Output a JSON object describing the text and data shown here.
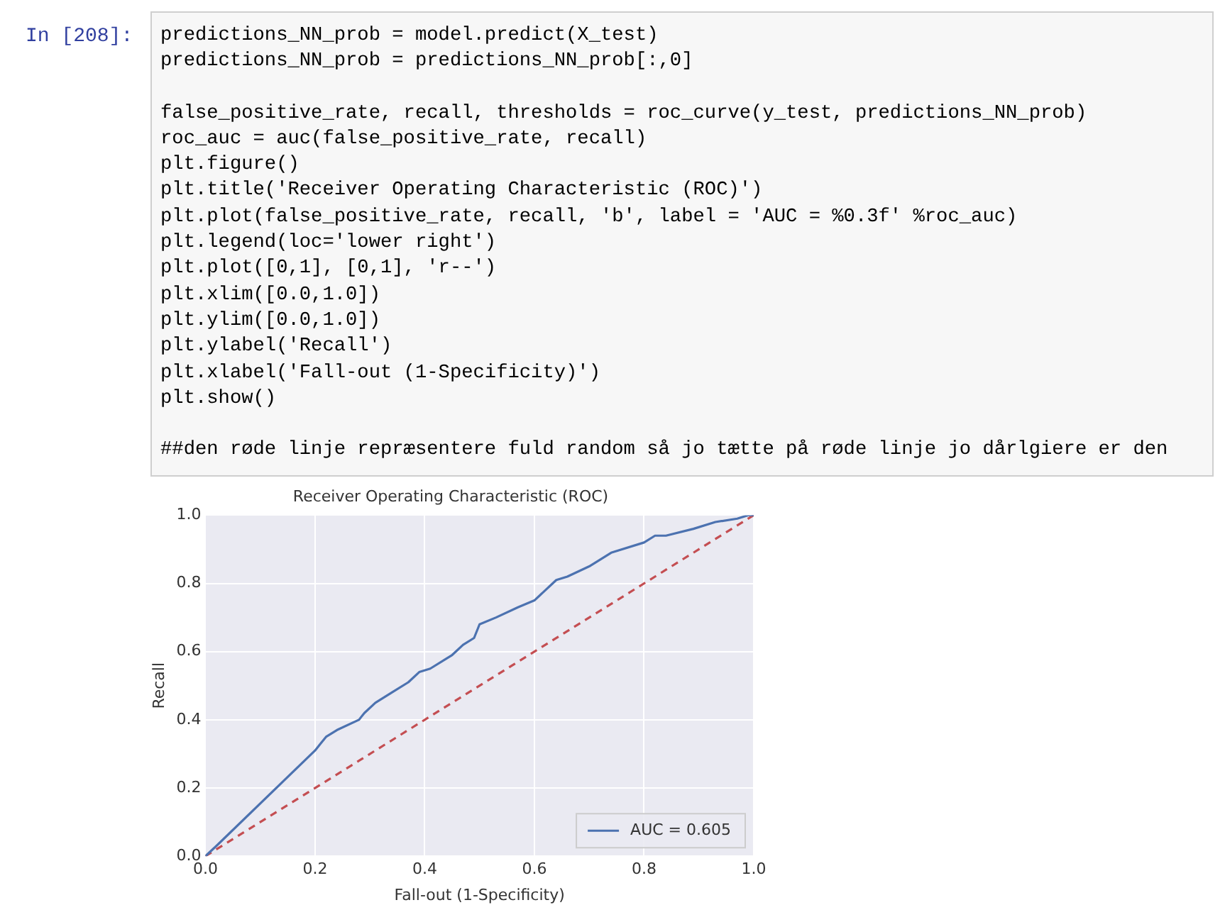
{
  "chart_data": {
    "type": "line",
    "title": "Receiver Operating Characteristic (ROC)",
    "xlabel": "Fall-out (1-Specificity)",
    "ylabel": "Recall",
    "annotations": [
      "In [208]:",
      "predictions_NN_prob = model.predict(X_test)",
      "predictions_NN_prob = predictions_NN_prob[:,0]",
      "false_positive_rate, recall, thresholds = roc_curve(y_test, predictions_NN_prob)",
      "roc_auc = auc(false_positive_rate, recall)",
      "plt.figure()",
      "plt.title('Receiver Operating Characteristic (ROC)')",
      "plt.plot(false_positive_rate, recall, 'b', label = 'AUC = %0.3f' %roc_auc)",
      "plt.legend(loc='lower right')",
      "plt.plot([0,1], [0,1], 'r--')",
      "plt.xlim([0.0,1.0])",
      "plt.ylim([0.0,1.0])",
      "plt.ylabel('Recall')",
      "plt.xlabel('Fall-out (1-Specificity)')",
      "plt.show()",
      "##den røde linje repræsentere fuld random så jo tætte på røde linje jo dårlgiere er den"
    ],
    "series": [
      {
        "name": "AUC = 0.605",
        "color": "#4c72b0",
        "line_style": "solid",
        "x": [
          0,
          0.02,
          0.2,
          0.21,
          0.22,
          0.24,
          0.28,
          0.29,
          0.31,
          0.34,
          0.37,
          0.39,
          0.41,
          0.44,
          0.45,
          0.47,
          0.49,
          0.5,
          0.53,
          0.57,
          0.6,
          0.64,
          0.66,
          0.7,
          0.74,
          0.8,
          0.82,
          0.84,
          0.89,
          0.93,
          0.97,
          0.99,
          1
        ],
        "values": [
          0,
          0.03,
          0.31,
          0.33,
          0.35,
          0.37,
          0.4,
          0.42,
          0.45,
          0.48,
          0.51,
          0.54,
          0.55,
          0.58,
          0.59,
          0.62,
          0.64,
          0.68,
          0.7,
          0.73,
          0.75,
          0.81,
          0.82,
          0.85,
          0.89,
          0.92,
          0.94,
          0.94,
          0.96,
          0.98,
          0.99,
          1,
          1
        ]
      },
      {
        "color": "#c44e52",
        "line_style": "dashed",
        "x": [
          0,
          1
        ],
        "values": [
          0,
          1
        ]
      }
    ],
    "xlim": [
      0,
      1
    ],
    "ylim": [
      0,
      1
    ],
    "xticks": [
      {
        "value": 0,
        "label": "0.0"
      },
      0.2,
      0.4,
      0.6,
      0.8,
      {
        "value": 1,
        "label": "1.0"
      }
    ],
    "yticks": [
      {
        "value": 0,
        "label": "0.0"
      },
      0.2,
      0.4,
      0.6,
      0.8,
      {
        "value": 1,
        "label": "1.0"
      }
    ],
    "grid": true,
    "legend": "bottom right",
    "marker": "none"
  }
}
